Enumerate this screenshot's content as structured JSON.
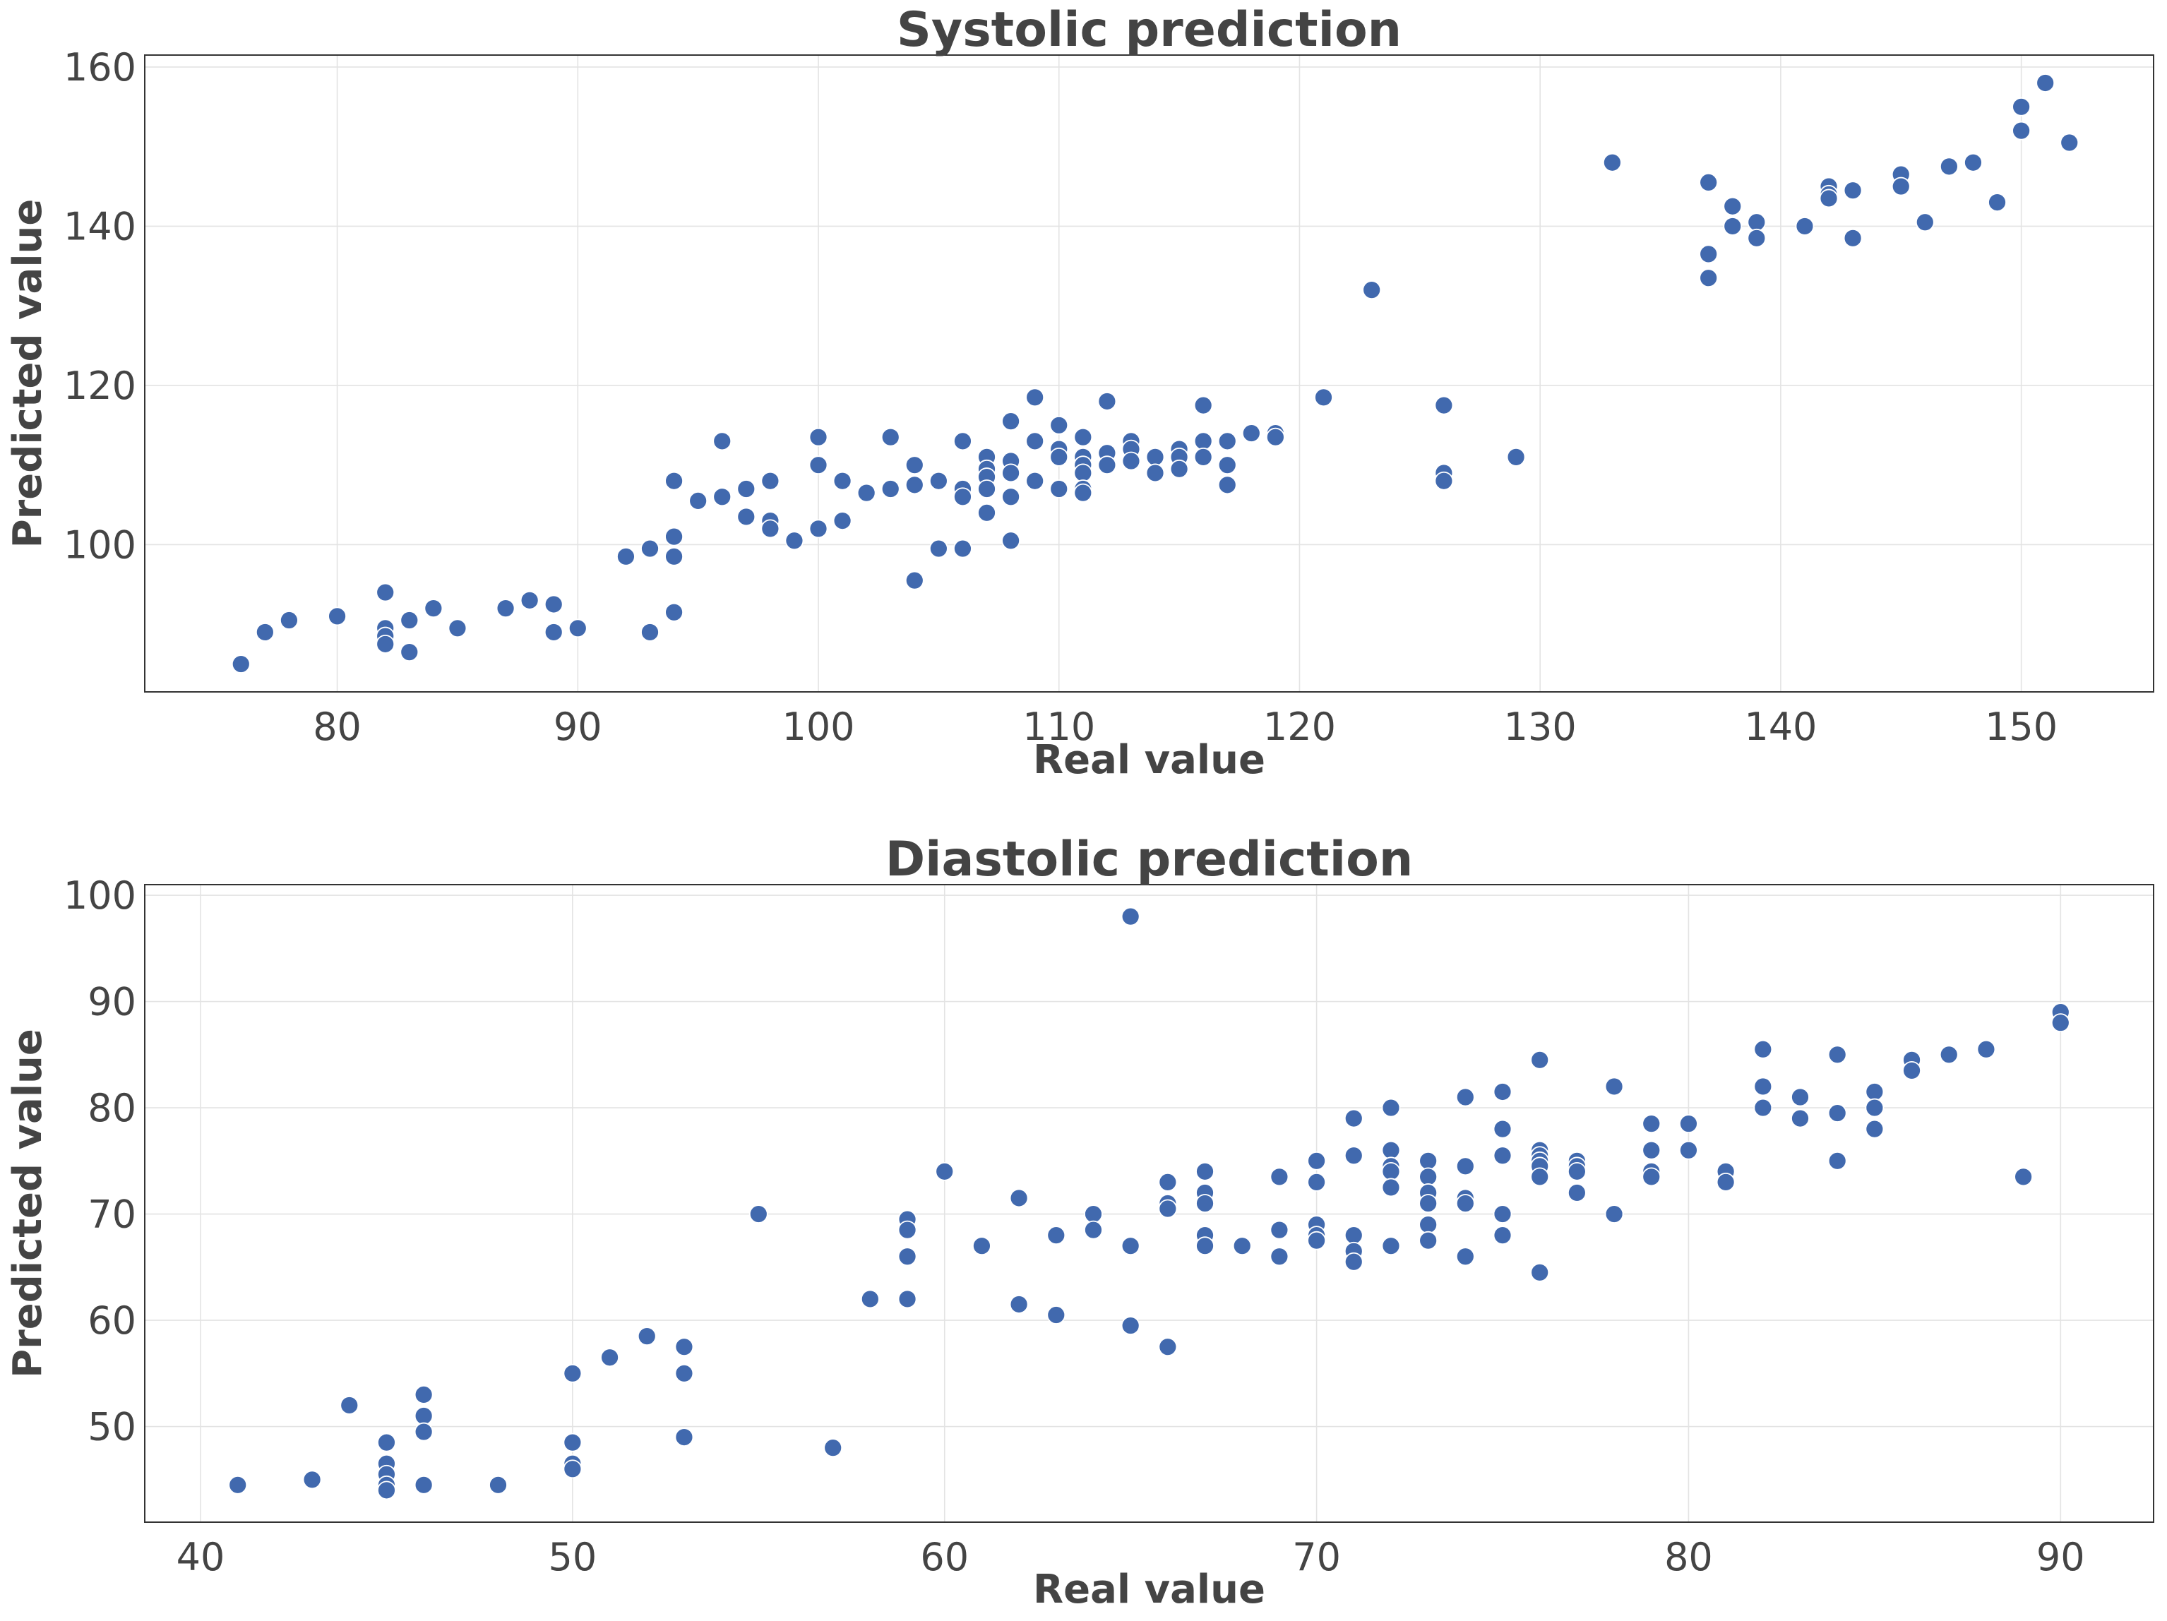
{
  "chart_data": [
    {
      "type": "scatter",
      "title": "Systolic prediction",
      "xlabel": "Real value",
      "ylabel": "Predicted value",
      "xlim": [
        72,
        155.5
      ],
      "ylim": [
        81.5,
        161.5
      ],
      "xticks": [
        80,
        90,
        100,
        110,
        120,
        130,
        140,
        150
      ],
      "yticks": [
        100,
        120,
        140,
        160
      ],
      "grid": true,
      "marker_color": "#4169AE",
      "points": [
        [
          76,
          85
        ],
        [
          77,
          89
        ],
        [
          78,
          90.5
        ],
        [
          80,
          91
        ],
        [
          82,
          94
        ],
        [
          82,
          89.5
        ],
        [
          82,
          88.5
        ],
        [
          82,
          87.5
        ],
        [
          83,
          86.5
        ],
        [
          83,
          90.5
        ],
        [
          84,
          92
        ],
        [
          85,
          89.5
        ],
        [
          87,
          92
        ],
        [
          88,
          93
        ],
        [
          89,
          92.5
        ],
        [
          89,
          89
        ],
        [
          90,
          89.5
        ],
        [
          92,
          98.5
        ],
        [
          93,
          99.5
        ],
        [
          93,
          89
        ],
        [
          94,
          108
        ],
        [
          94,
          101
        ],
        [
          94,
          98.5
        ],
        [
          94,
          91.5
        ],
        [
          95,
          105.5
        ],
        [
          96,
          113
        ],
        [
          96,
          106
        ],
        [
          97,
          107
        ],
        [
          97,
          103.5
        ],
        [
          98,
          108
        ],
        [
          98,
          103
        ],
        [
          98,
          102
        ],
        [
          99,
          100.5
        ],
        [
          100,
          113.5
        ],
        [
          100,
          110
        ],
        [
          100,
          102
        ],
        [
          101,
          108
        ],
        [
          101,
          103
        ],
        [
          102,
          106.5
        ],
        [
          103,
          113.5
        ],
        [
          103,
          107
        ],
        [
          104,
          110
        ],
        [
          104,
          107.5
        ],
        [
          104,
          95.5
        ],
        [
          105,
          108
        ],
        [
          105,
          99.5
        ],
        [
          106,
          113
        ],
        [
          106,
          107
        ],
        [
          106,
          106
        ],
        [
          106,
          99.5
        ],
        [
          107,
          111
        ],
        [
          107,
          109.5
        ],
        [
          107,
          108.5
        ],
        [
          107,
          107
        ],
        [
          107,
          104
        ],
        [
          108,
          115.5
        ],
        [
          108,
          110.5
        ],
        [
          108,
          109
        ],
        [
          108,
          106
        ],
        [
          108,
          100.5
        ],
        [
          109,
          118.5
        ],
        [
          109,
          113
        ],
        [
          109,
          108
        ],
        [
          110,
          115
        ],
        [
          110,
          112
        ],
        [
          110,
          111
        ],
        [
          110,
          107
        ],
        [
          111,
          113.5
        ],
        [
          111,
          111
        ],
        [
          111,
          110
        ],
        [
          111,
          109
        ],
        [
          111,
          107
        ],
        [
          111,
          106.5
        ],
        [
          112,
          118
        ],
        [
          112,
          111.5
        ],
        [
          112,
          110
        ],
        [
          113,
          113
        ],
        [
          113,
          112
        ],
        [
          113,
          110.5
        ],
        [
          114,
          111
        ],
        [
          114,
          109
        ],
        [
          115,
          112
        ],
        [
          115,
          111
        ],
        [
          115,
          109.5
        ],
        [
          116,
          117.5
        ],
        [
          116,
          113
        ],
        [
          116,
          111
        ],
        [
          117,
          113
        ],
        [
          117,
          110
        ],
        [
          117,
          107.5
        ],
        [
          118,
          114
        ],
        [
          119,
          114
        ],
        [
          119,
          113.5
        ],
        [
          121,
          118.5
        ],
        [
          123,
          132
        ],
        [
          126,
          117.5
        ],
        [
          126,
          109
        ],
        [
          126,
          108
        ],
        [
          129,
          111
        ],
        [
          133,
          148
        ],
        [
          137,
          145.5
        ],
        [
          137,
          136.5
        ],
        [
          137,
          133.5
        ],
        [
          138,
          142.5
        ],
        [
          138,
          140
        ],
        [
          139,
          140.5
        ],
        [
          139,
          138.5
        ],
        [
          141,
          140
        ],
        [
          142,
          145
        ],
        [
          142,
          144
        ],
        [
          142,
          143.5
        ],
        [
          143,
          144.5
        ],
        [
          143,
          138.5
        ],
        [
          145,
          146.5
        ],
        [
          145,
          145
        ],
        [
          146,
          140.5
        ],
        [
          147,
          147.5
        ],
        [
          148,
          148
        ],
        [
          149,
          143
        ],
        [
          150,
          155
        ],
        [
          150,
          152
        ],
        [
          151,
          158
        ],
        [
          152,
          150.5
        ]
      ]
    },
    {
      "type": "scatter",
      "title": "Diastolic prediction",
      "xlabel": "Real value",
      "ylabel": "Predicted value",
      "xlim": [
        38.5,
        92.5
      ],
      "ylim": [
        41,
        101
      ],
      "xticks": [
        40,
        50,
        60,
        70,
        80,
        90
      ],
      "yticks": [
        50,
        60,
        70,
        80,
        90,
        100
      ],
      "grid": true,
      "marker_color": "#4169AE",
      "points": [
        [
          41,
          44.5
        ],
        [
          43,
          45
        ],
        [
          44,
          52
        ],
        [
          45,
          48.5
        ],
        [
          45,
          46.5
        ],
        [
          45,
          45.5
        ],
        [
          45,
          44.5
        ],
        [
          45,
          44
        ],
        [
          46,
          53
        ],
        [
          46,
          51
        ],
        [
          46,
          49.5
        ],
        [
          46,
          44.5
        ],
        [
          48,
          44.5
        ],
        [
          50,
          55
        ],
        [
          50,
          48.5
        ],
        [
          50,
          46.5
        ],
        [
          50,
          46
        ],
        [
          51,
          56.5
        ],
        [
          52,
          58.5
        ],
        [
          53,
          57.5
        ],
        [
          53,
          55
        ],
        [
          53,
          49
        ],
        [
          55,
          70
        ],
        [
          57,
          48
        ],
        [
          58,
          62
        ],
        [
          59,
          69.5
        ],
        [
          59,
          68.5
        ],
        [
          59,
          66
        ],
        [
          59,
          62
        ],
        [
          60,
          74
        ],
        [
          61,
          67
        ],
        [
          62,
          71.5
        ],
        [
          62,
          61.5
        ],
        [
          63,
          68
        ],
        [
          63,
          60.5
        ],
        [
          64,
          70
        ],
        [
          64,
          68.5
        ],
        [
          65,
          98
        ],
        [
          65,
          67
        ],
        [
          65,
          59.5
        ],
        [
          66,
          73
        ],
        [
          66,
          71
        ],
        [
          66,
          70.5
        ],
        [
          66,
          57.5
        ],
        [
          67,
          74
        ],
        [
          67,
          72
        ],
        [
          67,
          71
        ],
        [
          67,
          68
        ],
        [
          67,
          67
        ],
        [
          68,
          67
        ],
        [
          69,
          73.5
        ],
        [
          69,
          68.5
        ],
        [
          69,
          66
        ],
        [
          70,
          75
        ],
        [
          70,
          73
        ],
        [
          70,
          69
        ],
        [
          70,
          68
        ],
        [
          70,
          67.5
        ],
        [
          71,
          79
        ],
        [
          71,
          75.5
        ],
        [
          71,
          68
        ],
        [
          71,
          66.5
        ],
        [
          71,
          65.5
        ],
        [
          72,
          80
        ],
        [
          72,
          76
        ],
        [
          72,
          74.5
        ],
        [
          72,
          74
        ],
        [
          72,
          72.5
        ],
        [
          72,
          67
        ],
        [
          73,
          75
        ],
        [
          73,
          73.5
        ],
        [
          73,
          72
        ],
        [
          73,
          71
        ],
        [
          73,
          69
        ],
        [
          73,
          67.5
        ],
        [
          74,
          81
        ],
        [
          74,
          74.5
        ],
        [
          74,
          71.5
        ],
        [
          74,
          71
        ],
        [
          74,
          66
        ],
        [
          75,
          81.5
        ],
        [
          75,
          78
        ],
        [
          75,
          75.5
        ],
        [
          75,
          70
        ],
        [
          75,
          68
        ],
        [
          76,
          84.5
        ],
        [
          76,
          76
        ],
        [
          76,
          75.5
        ],
        [
          76,
          75
        ],
        [
          76,
          74.5
        ],
        [
          76,
          73.5
        ],
        [
          76,
          64.5
        ],
        [
          77,
          75
        ],
        [
          77,
          74.5
        ],
        [
          77,
          74
        ],
        [
          77,
          72
        ],
        [
          78,
          82
        ],
        [
          78,
          70
        ],
        [
          79,
          78.5
        ],
        [
          79,
          76
        ],
        [
          79,
          74
        ],
        [
          79,
          73.5
        ],
        [
          80,
          78.5
        ],
        [
          80,
          76
        ],
        [
          81,
          74
        ],
        [
          81,
          73
        ],
        [
          82,
          85.5
        ],
        [
          82,
          82
        ],
        [
          82,
          80
        ],
        [
          83,
          81
        ],
        [
          83,
          79
        ],
        [
          84,
          85
        ],
        [
          84,
          79.5
        ],
        [
          84,
          75
        ],
        [
          85,
          81.5
        ],
        [
          85,
          80
        ],
        [
          85,
          78
        ],
        [
          86,
          84.5
        ],
        [
          86,
          83.5
        ],
        [
          87,
          85
        ],
        [
          88,
          85.5
        ],
        [
          89,
          73.5
        ],
        [
          90,
          89
        ],
        [
          90,
          88
        ]
      ]
    }
  ]
}
